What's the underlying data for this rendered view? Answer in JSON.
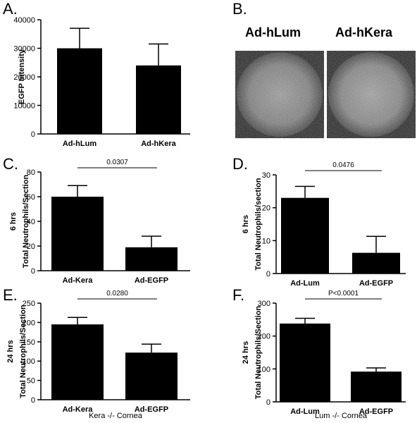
{
  "panels": {
    "A": "A.",
    "B": "B.",
    "C": "C.",
    "D": "D.",
    "E": "E.",
    "F": "F."
  },
  "images": {
    "left_label": "Ad-hLum",
    "right_label": "Ad-hKera"
  },
  "colors": {
    "bar": "#000000",
    "axis": "#000000",
    "background": "#ffffff"
  },
  "chart_data": [
    {
      "id": "A",
      "type": "bar",
      "categories": [
        "Ad-hLum",
        "Ad-hKera"
      ],
      "values": [
        30000,
        24000
      ],
      "errors": [
        7000,
        7500
      ],
      "ylabel": "EGFP Intensity",
      "ylabel2": "",
      "xlabel": "",
      "ylim": [
        0,
        40000
      ],
      "yticks": [
        0,
        10000,
        20000,
        30000,
        40000
      ],
      "pvalue": ""
    },
    {
      "id": "C",
      "type": "bar",
      "categories": [
        "Ad-Kera",
        "Ad-EGFP"
      ],
      "values": [
        60,
        19
      ],
      "errors": [
        9,
        9
      ],
      "ylabel": "Total  Neutrophils/Section",
      "ylabel2": "6 hrs",
      "xlabel": "",
      "ylim": [
        0,
        80
      ],
      "yticks": [
        0,
        20,
        40,
        60,
        80
      ],
      "pvalue": "0.0307"
    },
    {
      "id": "D",
      "type": "bar",
      "categories": [
        "Ad-Lum",
        "Ad-EGFP"
      ],
      "values": [
        23,
        6.3
      ],
      "errors": [
        3.5,
        5
      ],
      "ylabel": "Total  Neutrophils/section",
      "ylabel2": "6 hrs",
      "xlabel": "",
      "ylim": [
        0,
        30
      ],
      "yticks": [
        0,
        10,
        20,
        30
      ],
      "pvalue": "0.0476"
    },
    {
      "id": "E",
      "type": "bar",
      "categories": [
        "Ad-Kera",
        "Ad-EGFP"
      ],
      "values": [
        195,
        122
      ],
      "errors": [
        18,
        22
      ],
      "ylabel": "Total Neutrophils/Section",
      "ylabel2": "24 hrs",
      "xlabel": "Kera -/- Cornea",
      "ylim": [
        0,
        250
      ],
      "yticks": [
        0,
        50,
        100,
        150,
        200,
        250
      ],
      "pvalue": "0.0280"
    },
    {
      "id": "F",
      "type": "bar",
      "categories": [
        "Ad-Lum",
        "Ad-EGFP"
      ],
      "values": [
        238,
        92
      ],
      "errors": [
        16,
        11
      ],
      "ylabel": "Total Neutrophils/Section",
      "ylabel2": "24 hrs",
      "xlabel": "Lum -/- Cornea",
      "ylim": [
        0,
        300
      ],
      "yticks": [
        0,
        100,
        200,
        300
      ],
      "pvalue": "P<0.0001"
    }
  ]
}
